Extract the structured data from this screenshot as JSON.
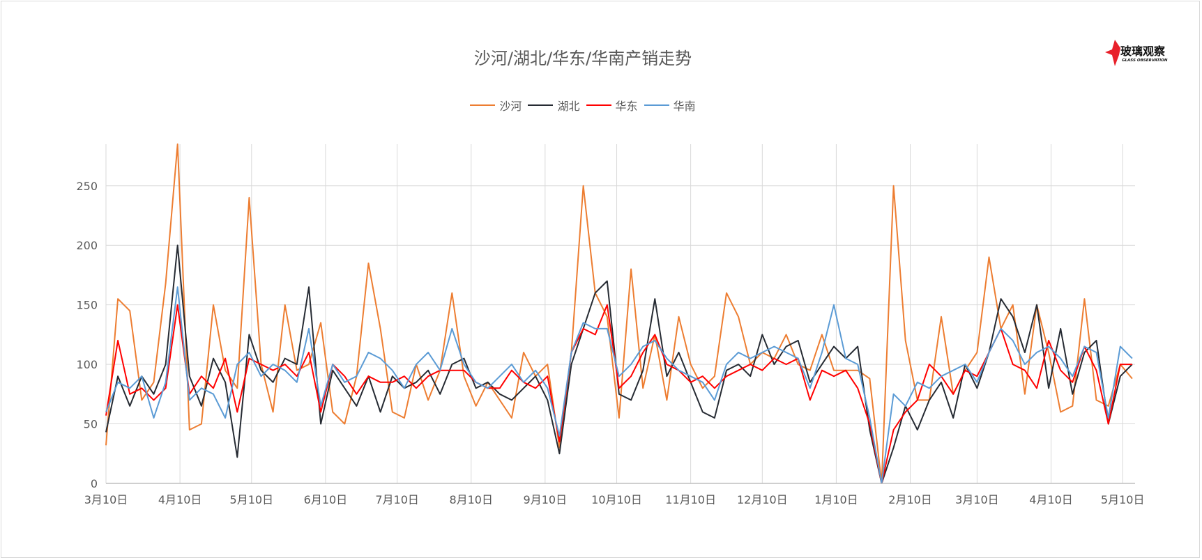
{
  "chart_data": {
    "type": "line",
    "title": "沙河/湖北/华东/华南产销走势",
    "xlabel": "",
    "ylabel": "",
    "ylim": [
      0,
      285
    ],
    "yticks": [
      "0",
      "50",
      "100",
      "150",
      "200",
      "250"
    ],
    "xticks": [
      "3月10日",
      "4月10日",
      "5月10日",
      "6月10日",
      "7月10日",
      "8月10日",
      "9月10日",
      "10月10日",
      "11月10日",
      "12月10日",
      "1月10日",
      "2月10日",
      "3月10日",
      "4月10日",
      "5月10日"
    ],
    "grid": true,
    "legend_position": "top",
    "x": [
      "3/10",
      "3/15",
      "3/20",
      "3/25",
      "3/30",
      "4/4",
      "4/9",
      "4/14",
      "4/19",
      "4/24",
      "4/29",
      "5/4",
      "5/9",
      "5/14",
      "5/19",
      "5/24",
      "5/29",
      "6/3",
      "6/8",
      "6/13",
      "6/18",
      "6/23",
      "6/28",
      "7/3",
      "7/8",
      "7/13",
      "7/18",
      "7/23",
      "7/28",
      "8/2",
      "8/7",
      "8/12",
      "8/17",
      "8/22",
      "8/27",
      "9/1",
      "9/6",
      "9/11",
      "9/16",
      "9/21",
      "9/26",
      "10/1",
      "10/6",
      "10/11",
      "10/16",
      "10/21",
      "10/26",
      "10/31",
      "11/5",
      "11/10",
      "11/15",
      "11/20",
      "11/25",
      "11/30",
      "12/5",
      "12/10",
      "12/15",
      "12/20",
      "12/25",
      "12/30",
      "1/4",
      "1/9",
      "1/14",
      "1/19",
      "1/24",
      "1/29",
      "2/3",
      "2/8",
      "2/13",
      "2/18",
      "2/23",
      "2/28",
      "3/5",
      "3/10",
      "3/15",
      "3/20",
      "3/25",
      "3/30",
      "4/4",
      "4/9",
      "4/14",
      "4/19",
      "4/24",
      "4/29",
      "5/4",
      "5/9",
      "5/14"
    ],
    "series": [
      {
        "name": "沙河",
        "color": "#ed7d31",
        "values": [
          32,
          155,
          145,
          70,
          85,
          168,
          285,
          45,
          50,
          150,
          95,
          80,
          240,
          100,
          60,
          150,
          95,
          100,
          135,
          60,
          50,
          90,
          185,
          130,
          60,
          55,
          100,
          70,
          95,
          160,
          90,
          65,
          85,
          70,
          55,
          110,
          90,
          100,
          30,
          110,
          250,
          160,
          140,
          55,
          180,
          80,
          125,
          70,
          140,
          100,
          80,
          90,
          160,
          140,
          100,
          110,
          105,
          125,
          100,
          95,
          125,
          95,
          95,
          95,
          88,
          0,
          250,
          120,
          70,
          70,
          140,
          75,
          95,
          110,
          190,
          130,
          150,
          75,
          150,
          110,
          60,
          65,
          155,
          70,
          65,
          100,
          88
        ]
      },
      {
        "name": "湖北",
        "color": "#262b33",
        "values": [
          43,
          90,
          65,
          90,
          75,
          100,
          200,
          90,
          65,
          105,
          85,
          22,
          125,
          95,
          85,
          105,
          100,
          165,
          50,
          95,
          80,
          65,
          90,
          60,
          90,
          80,
          85,
          95,
          75,
          100,
          105,
          80,
          85,
          75,
          70,
          80,
          90,
          70,
          25,
          100,
          130,
          160,
          170,
          75,
          70,
          95,
          155,
          90,
          110,
          85,
          60,
          55,
          95,
          100,
          90,
          125,
          100,
          115,
          120,
          85,
          100,
          115,
          105,
          115,
          45,
          0,
          30,
          65,
          45,
          70,
          85,
          55,
          100,
          80,
          110,
          155,
          140,
          110,
          150,
          80,
          130,
          75,
          110,
          120,
          50,
          90,
          100
        ]
      },
      {
        "name": "华东",
        "color": "#ff0000",
        "values": [
          57,
          120,
          75,
          80,
          70,
          80,
          150,
          75,
          90,
          80,
          105,
          60,
          105,
          100,
          95,
          100,
          90,
          110,
          60,
          100,
          90,
          75,
          90,
          85,
          85,
          90,
          80,
          90,
          95,
          95,
          95,
          85,
          80,
          80,
          95,
          85,
          80,
          90,
          35,
          110,
          130,
          125,
          150,
          80,
          90,
          110,
          125,
          100,
          95,
          85,
          90,
          80,
          90,
          95,
          100,
          95,
          105,
          100,
          105,
          70,
          95,
          90,
          95,
          80,
          50,
          0,
          45,
          60,
          70,
          100,
          90,
          75,
          95,
          90,
          110,
          130,
          100,
          95,
          80,
          120,
          95,
          85,
          115,
          95,
          50,
          100,
          100
        ]
      },
      {
        "name": "华南",
        "color": "#5b9bd5",
        "values": [
          60,
          85,
          80,
          90,
          55,
          85,
          165,
          70,
          80,
          75,
          55,
          100,
          110,
          90,
          100,
          95,
          85,
          130,
          65,
          100,
          85,
          90,
          110,
          105,
          95,
          80,
          100,
          110,
          95,
          130,
          100,
          85,
          80,
          90,
          100,
          85,
          95,
          80,
          40,
          110,
          135,
          130,
          130,
          90,
          100,
          115,
          120,
          105,
          95,
          90,
          85,
          70,
          100,
          110,
          105,
          110,
          115,
          110,
          105,
          80,
          110,
          150,
          105,
          100,
          55,
          0,
          75,
          65,
          85,
          80,
          90,
          95,
          100,
          85,
          110,
          130,
          120,
          100,
          110,
          115,
          105,
          90,
          115,
          110,
          55,
          115,
          105
        ]
      }
    ]
  },
  "logo": {
    "text": "玻璃观察",
    "subtext": "GLASS OBSERVATION"
  }
}
